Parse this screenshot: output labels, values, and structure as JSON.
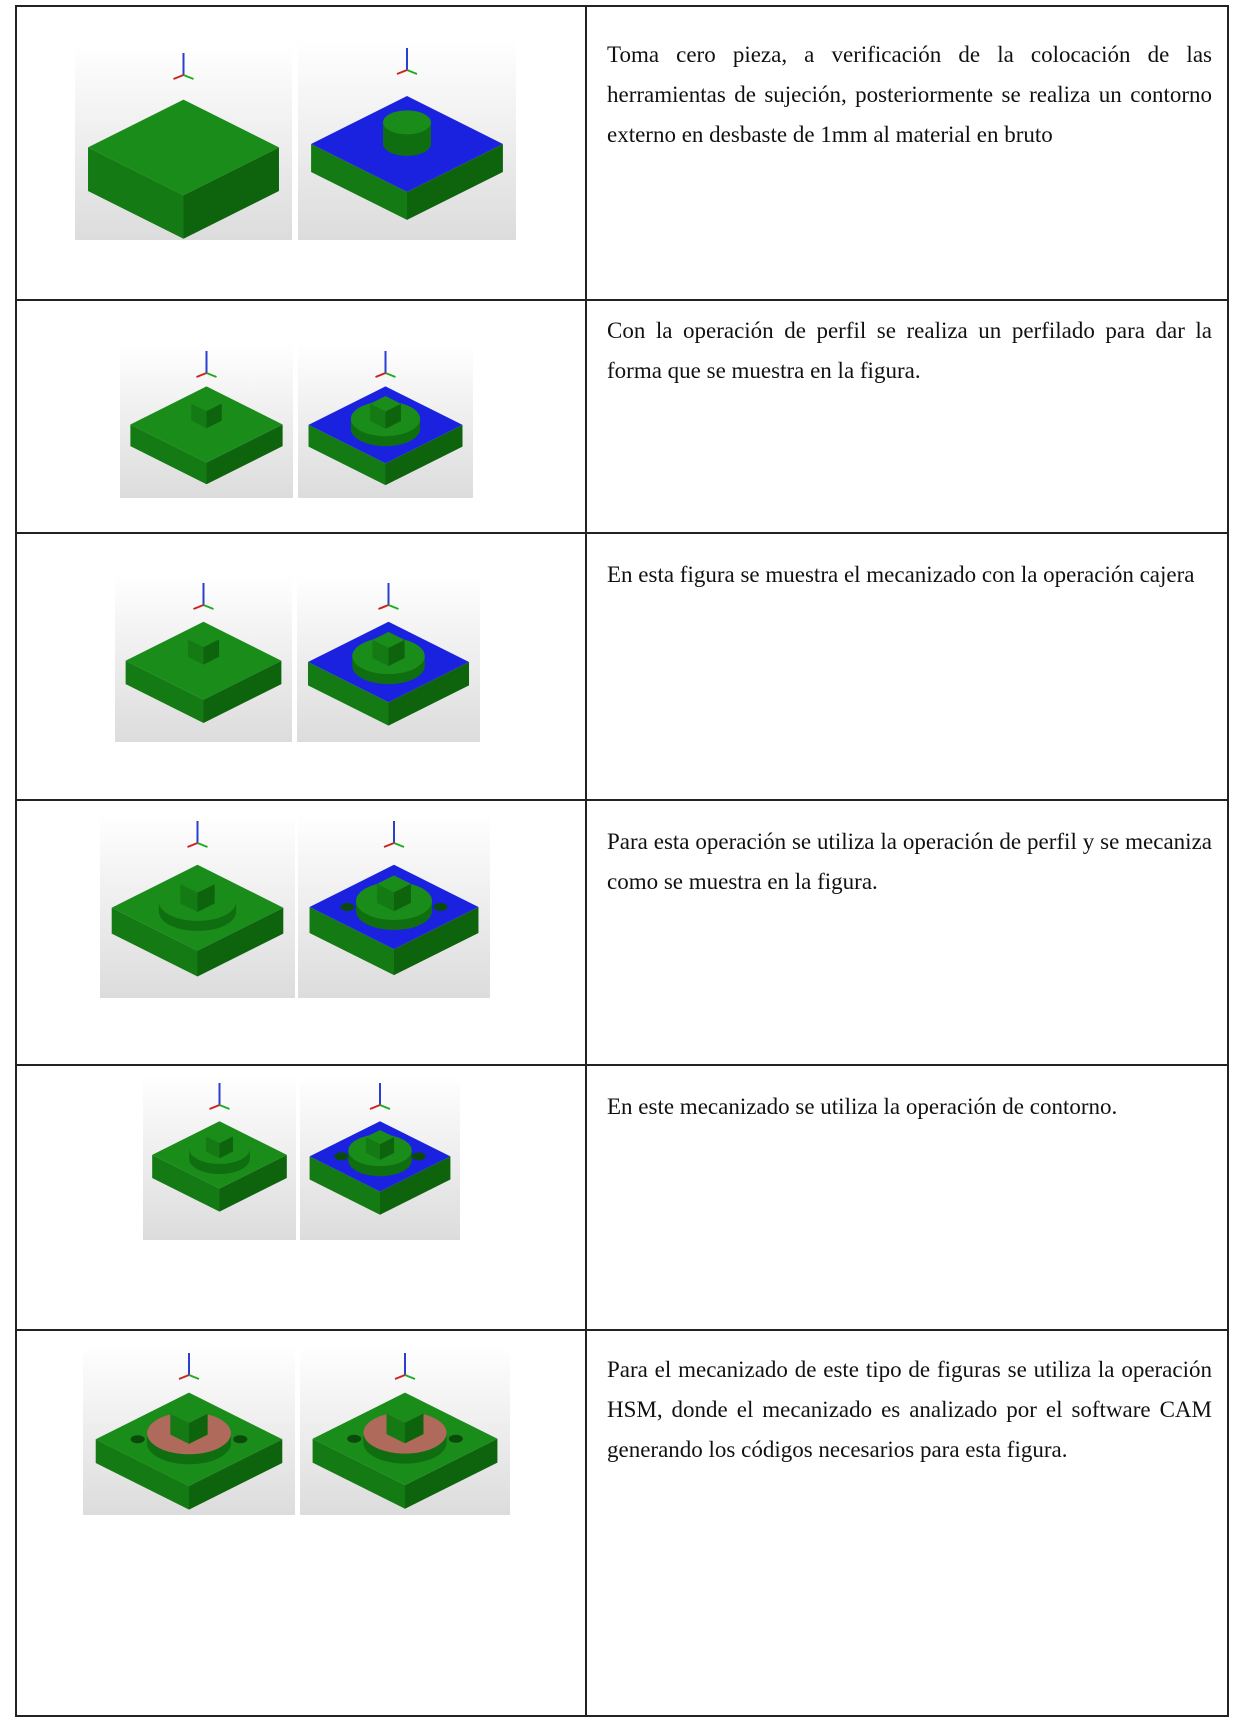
{
  "rows": [
    {
      "text": "Toma cero pieza, a verificación de la colocación de las herramientas de sujeción, posteriormente se realiza un contorno externo en desbaste de 1mm al material en bruto"
    },
    {
      "text": "Con la operación de perfil se realiza un perfilado para dar la forma que se muestra en la figura."
    },
    {
      "text": "En esta figura se muestra el mecanizado con la operación cajera"
    },
    {
      "text": "Para esta operación se utiliza la operación de perfil y se mecaniza como se muestra en la figura."
    },
    {
      "text": "En este mecanizado se utiliza la operación de contorno."
    },
    {
      "text": "Para el mecanizado de este tipo de figuras se utiliza la operación HSM, donde el mecanizado es analizado por el software CAM generando los códigos necesarios para esta figura."
    }
  ]
}
